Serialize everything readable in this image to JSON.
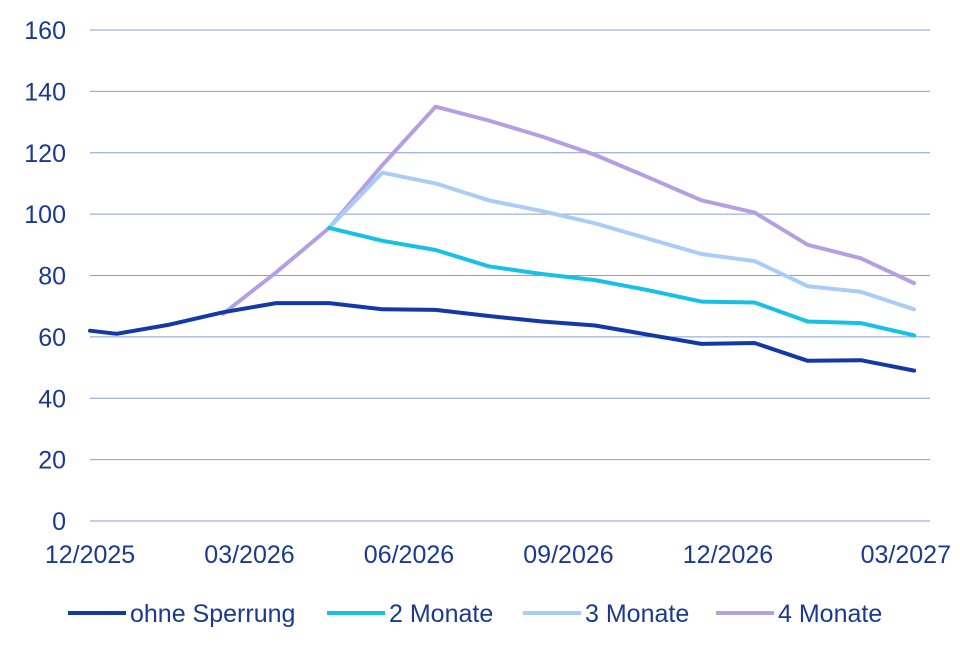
{
  "chart_data": {
    "type": "line",
    "title": "",
    "xlabel": "",
    "ylabel": "",
    "ylim": [
      0,
      160
    ],
    "yticks": [
      0,
      20,
      40,
      60,
      80,
      100,
      120,
      140,
      160
    ],
    "x_tick_labels": [
      "12/2025",
      "03/2026",
      "06/2026",
      "09/2026",
      "12/2026",
      "03/2027"
    ],
    "x_tick_positions": [
      0,
      3,
      6,
      9,
      12,
      15
    ],
    "xlim": [
      0,
      15.8
    ],
    "grid": true,
    "legend_position": "bottom",
    "series": [
      {
        "name": "ohne Sperrung",
        "color": "#1338a8",
        "x": [
          0,
          0.5,
          1.5,
          2.5,
          3.5,
          4.5,
          5.5,
          6.5,
          7.5,
          8.5,
          9.5,
          10.5,
          11.5,
          12.5,
          13.5,
          14.5,
          15.5
        ],
        "values": [
          62,
          61,
          64,
          68,
          71,
          71,
          69,
          68.8,
          66.8,
          65,
          63.7,
          60.7,
          57.7,
          58,
          52.2,
          52.4,
          49
        ]
      },
      {
        "name": "2 Monate",
        "color": "#17c1e6",
        "x": [
          4.5,
          5.5,
          6.5,
          7.5,
          8.5,
          9.5,
          10.5,
          11.5,
          12.5,
          13.5,
          14.5,
          15.5
        ],
        "values": [
          95.5,
          91.3,
          88.3,
          83,
          80.5,
          78.5,
          75.2,
          71.5,
          71.2,
          65,
          64.5,
          60.5
        ]
      },
      {
        "name": "3 Monate",
        "color": "#a9cdf6",
        "x": [
          4.5,
          5.5,
          6.5,
          7.5,
          8.5,
          9.5,
          10.5,
          11.5,
          12.5,
          13.5,
          14.5,
          15.5
        ],
        "values": [
          95.5,
          113.5,
          110,
          104.5,
          101,
          97,
          92,
          87,
          84.7,
          76.5,
          74.7,
          69
        ]
      },
      {
        "name": "4 Monate",
        "color": "#b59fe3",
        "x": [
          2.5,
          3.5,
          4.5,
          5.5,
          6.5,
          7.5,
          8.5,
          9.5,
          10.5,
          11.5,
          12.5,
          13.5,
          14.5,
          15.5
        ],
        "values": [
          67.5,
          81,
          95.5,
          116,
          135,
          130.5,
          125.3,
          119.3,
          112,
          104.5,
          100.5,
          90,
          85.6,
          77.5
        ]
      }
    ]
  }
}
